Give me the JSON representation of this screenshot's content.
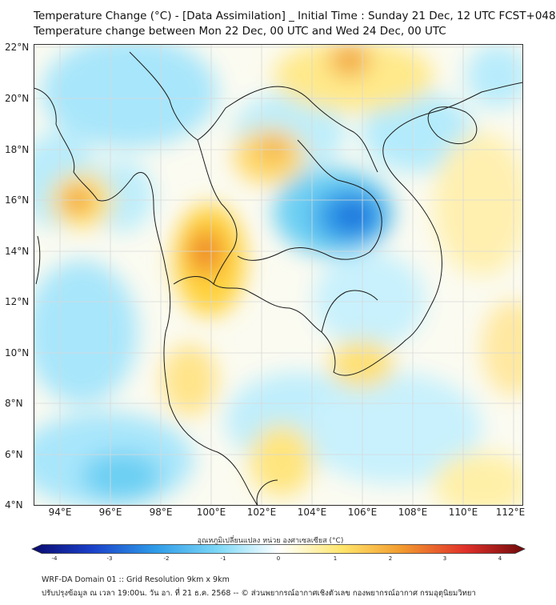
{
  "title_line1": "Temperature Change (°C) - [Data Assimilation] _ Initial Time : Sunday 21 Dec, 12 UTC FCST+048",
  "title_line2": "Temperature change between Mon 22 Dec, 00 UTC and Wed 24 Dec, 00 UTC",
  "x_ticks": [
    "94°E",
    "96°E",
    "98°E",
    "100°E",
    "102°E",
    "104°E",
    "106°E",
    "108°E",
    "110°E",
    "112°E"
  ],
  "y_ticks": [
    "22°N",
    "20°N",
    "18°N",
    "16°N",
    "14°N",
    "12°N",
    "10°N",
    "8°N",
    "6°N",
    "4°N"
  ],
  "colorbar_label": "อุณหภูมิเปลี่ยนแปลง หน่วย องศาเซลเซียส (°C)",
  "colorbar_ticks": [
    "-4",
    "-3",
    "-2",
    "-1",
    "0",
    "1",
    "2",
    "3",
    "4"
  ],
  "colors": {
    "blue_dark": "#1a3fc8",
    "blue": "#2e9be8",
    "cyan_light": "#a8e6fb",
    "white": "#ffffff",
    "yellow_light": "#fff3a8",
    "yellow": "#ffd23c",
    "orange": "#f29a2e",
    "red": "#d0202a"
  },
  "footer_line1": "WRF-DA Domain 01 :: Grid Resolution 9km x 9km",
  "footer_line2": "ปรับปรุงข้อมูล ณ เวลา 19:00น. วัน อา. ที่ 21 ธ.ค. 2568 -- © ส่วนพยากรณ์อากาศเชิงตัวเลข กองพยากรณ์อากาศ กรมอุตุนิยมวิทยา"
}
